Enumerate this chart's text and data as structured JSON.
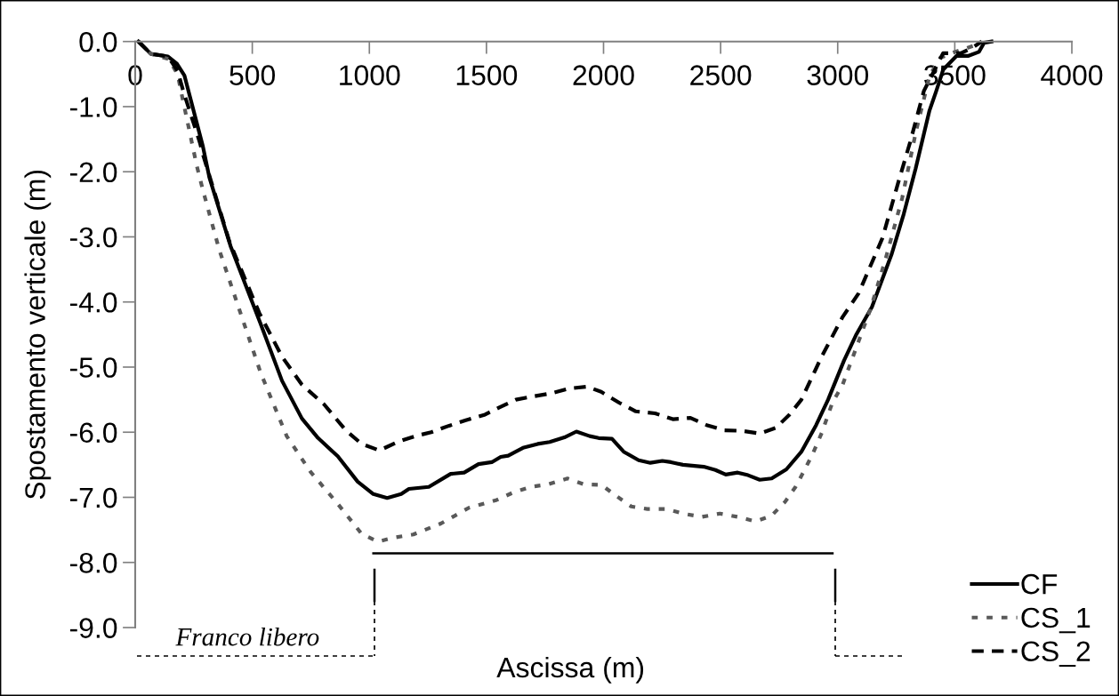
{
  "chart_data": {
    "type": "line",
    "xlabel": "Ascissa (m)",
    "ylabel": "Spostamento verticale (m)",
    "xlim": [
      0,
      4000
    ],
    "ylim": [
      -9,
      0
    ],
    "xticks": [
      0,
      500,
      1000,
      1500,
      2000,
      2500,
      3000,
      3500,
      4000
    ],
    "yticks": [
      {
        "value": 0,
        "label": "0.0"
      },
      {
        "value": -1,
        "label": "-1.0"
      },
      {
        "value": -2,
        "label": "-2.0"
      },
      {
        "value": -3,
        "label": "-3.0"
      },
      {
        "value": -4,
        "label": "-4.0"
      },
      {
        "value": -5,
        "label": "-5.0"
      },
      {
        "value": -6,
        "label": "-6.0"
      },
      {
        "value": -7,
        "label": "-7.0"
      },
      {
        "value": -8,
        "label": "-8.0"
      },
      {
        "value": -9,
        "label": "-9.0"
      }
    ],
    "grid": false,
    "legend": "bottom right",
    "marker": "none",
    "annotations": [
      "Franco libero"
    ],
    "series": [
      {
        "color": "#000000",
        "line_style": "solid",
        "x": [
          1017,
          2978
        ],
        "values": [
          -7.86,
          -7.86
        ]
      },
      {
        "name": "CF",
        "color": "#000000",
        "line_style": "solid",
        "x": [
          14,
          67,
          140,
          178,
          210,
          289,
          317,
          407,
          534,
          627,
          712,
          781,
          865,
          950,
          1017,
          1076,
          1136,
          1169,
          1254,
          1347,
          1405,
          1466,
          1523,
          1561,
          1593,
          1656,
          1719,
          1770,
          1833,
          1884,
          1941,
          1979,
          2036,
          2086,
          2150,
          2200,
          2251,
          2288,
          2339,
          2428,
          2478,
          2522,
          2573,
          2617,
          2667,
          2718,
          2781,
          2845,
          2908,
          2959,
          3027,
          3078,
          3146,
          3231,
          3282,
          3333,
          3392,
          3420,
          3451,
          3508,
          3559,
          3603,
          3625,
          3657
        ],
        "values": [
          0,
          -0.19,
          -0.23,
          -0.34,
          -0.52,
          -1.61,
          -2.09,
          -3.14,
          -4.32,
          -5.21,
          -5.79,
          -6.09,
          -6.37,
          -6.76,
          -6.95,
          -7.01,
          -6.95,
          -6.87,
          -6.84,
          -6.64,
          -6.62,
          -6.49,
          -6.46,
          -6.38,
          -6.36,
          -6.24,
          -6.18,
          -6.15,
          -6.08,
          -5.99,
          -6.06,
          -6.09,
          -6.1,
          -6.3,
          -6.43,
          -6.47,
          -6.44,
          -6.46,
          -6.5,
          -6.53,
          -6.58,
          -6.65,
          -6.62,
          -6.66,
          -6.73,
          -6.71,
          -6.57,
          -6.3,
          -5.89,
          -5.5,
          -4.9,
          -4.51,
          -4.08,
          -3.26,
          -2.65,
          -1.95,
          -1.06,
          -0.77,
          -0.43,
          -0.22,
          -0.22,
          -0.16,
          -0.02,
          0
        ]
      },
      {
        "name": "CS_1",
        "color": "#595959",
        "line_style": "dotted",
        "x": [
          14,
          67,
          143,
          181,
          199,
          263,
          289,
          359,
          444,
          536,
          647,
          749,
          865,
          967,
          1036,
          1103,
          1188,
          1307,
          1425,
          1544,
          1612,
          1688,
          1764,
          1846,
          1916,
          1991,
          2055,
          2118,
          2187,
          2269,
          2339,
          2421,
          2497,
          2573,
          2649,
          2718,
          2775,
          2820,
          2857,
          2895,
          2933,
          2977,
          3021,
          3140,
          3206,
          3275,
          3335,
          3393,
          3438,
          3501,
          3577,
          3615
        ],
        "values": [
          0,
          -0.19,
          -0.27,
          -0.5,
          -0.82,
          -1.91,
          -2.28,
          -3.2,
          -4.11,
          -5.09,
          -6.06,
          -6.61,
          -7.1,
          -7.56,
          -7.68,
          -7.62,
          -7.57,
          -7.4,
          -7.16,
          -7.04,
          -6.93,
          -6.84,
          -6.8,
          -6.71,
          -6.8,
          -6.81,
          -6.98,
          -7.14,
          -7.18,
          -7.18,
          -7.25,
          -7.3,
          -7.25,
          -7.3,
          -7.37,
          -7.28,
          -7.07,
          -6.84,
          -6.59,
          -6.32,
          -6.0,
          -5.55,
          -5.27,
          -4.11,
          -3.32,
          -2.41,
          -1.37,
          -0.52,
          -0.25,
          -0.16,
          -0.07,
          0
        ]
      },
      {
        "name": "CS_2",
        "color": "#000000",
        "line_style": "dashed",
        "x": [
          14,
          67,
          140,
          181,
          206,
          276,
          289,
          402,
          530,
          627,
          712,
          806,
          899,
          967,
          1043,
          1120,
          1196,
          1264,
          1341,
          1409,
          1494,
          1555,
          1626,
          1700,
          1780,
          1850,
          1930,
          1990,
          2068,
          2138,
          2220,
          2296,
          2371,
          2440,
          2516,
          2592,
          2667,
          2737,
          2794,
          2845,
          2930,
          3021,
          3089,
          3191,
          3259,
          3309,
          3368,
          3450,
          3526,
          3577,
          3615
        ],
        "values": [
          0,
          -0.19,
          -0.23,
          -0.45,
          -0.77,
          -1.55,
          -1.73,
          -3.07,
          -4.17,
          -4.84,
          -5.27,
          -5.57,
          -5.97,
          -6.18,
          -6.28,
          -6.15,
          -6.06,
          -6.0,
          -5.9,
          -5.82,
          -5.73,
          -5.62,
          -5.5,
          -5.45,
          -5.4,
          -5.33,
          -5.3,
          -5.38,
          -5.55,
          -5.68,
          -5.71,
          -5.8,
          -5.78,
          -5.89,
          -5.97,
          -5.98,
          -6.02,
          -5.93,
          -5.73,
          -5.5,
          -4.85,
          -4.23,
          -3.87,
          -3.02,
          -2.16,
          -1.55,
          -0.76,
          -0.18,
          -0.18,
          -0.09,
          0
        ]
      }
    ]
  }
}
